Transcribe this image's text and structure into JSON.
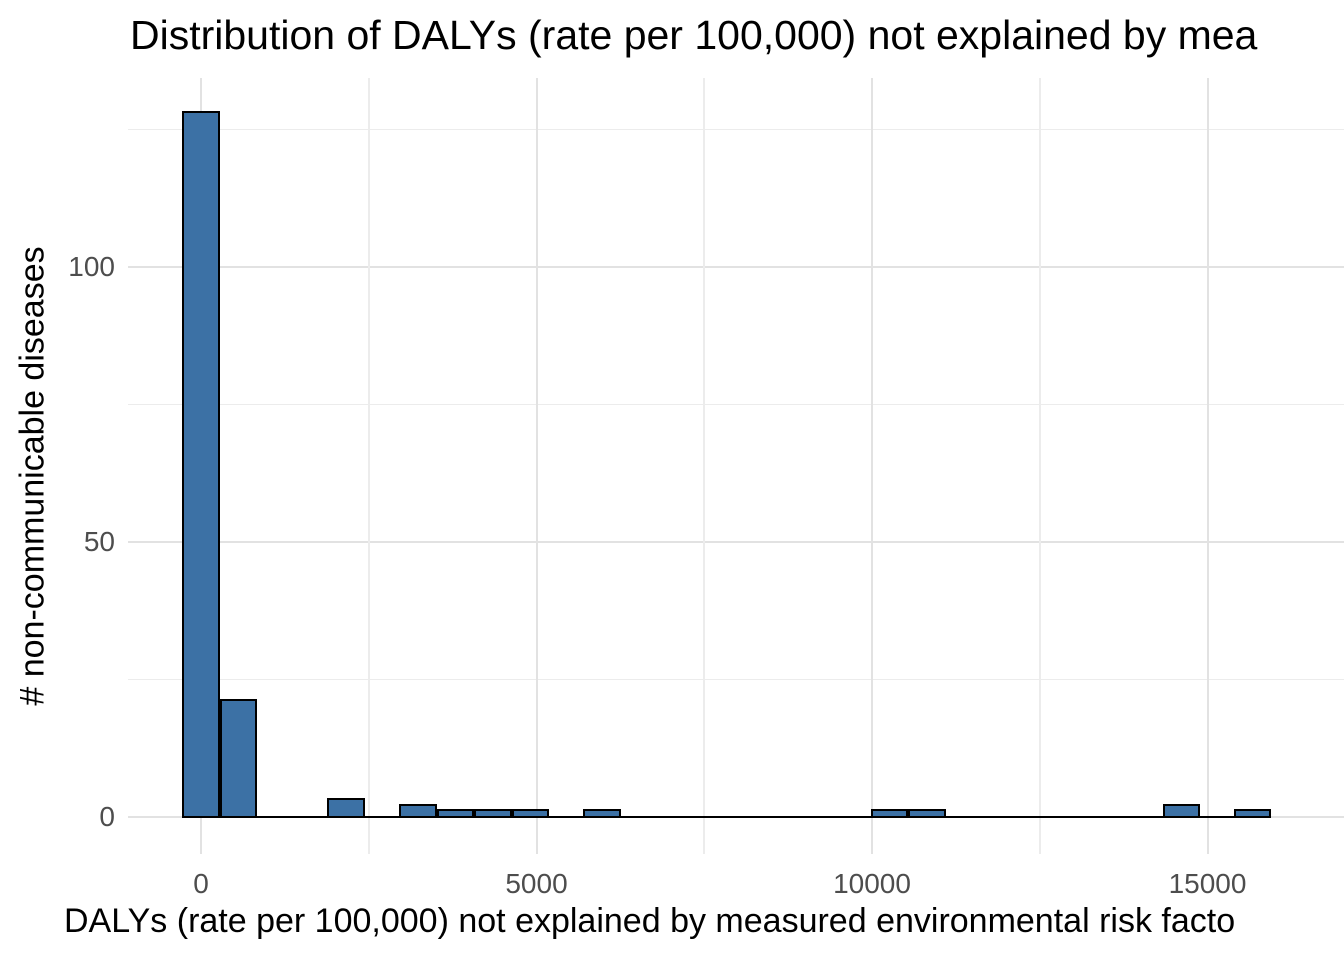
{
  "chart": {
    "title": "Distribution of DALYs (rate per 100,000) not explained by mea",
    "x_axis_title": "DALYs (rate per 100,000) not explained by measured environmental risk facto",
    "y_axis_title": "# non-communicable diseases",
    "colors": {
      "bar_fill": "#3C71A5",
      "bar_outline": "#000000",
      "baseline": "#000000",
      "grid_major": "#E2E2E2",
      "grid_minor": "#ECECEC",
      "tick_label": "#4D4D4D",
      "title_text": "#000000",
      "background": "#FFFFFF"
    }
  },
  "chart_data": {
    "type": "bar",
    "subtype": "histogram",
    "title": "Distribution of DALYs (rate per 100,000) not explained by mea",
    "xlabel": "DALYs (rate per 100,000) not explained by measured environmental risk facto",
    "ylabel": "# non-communicable diseases",
    "grid": true,
    "legend": false,
    "xlim": [
      -1090,
      17050
    ],
    "ylim": [
      -7,
      134
    ],
    "x_ticks": [
      0,
      5000,
      10000,
      15000
    ],
    "x_tick_labels": [
      "0",
      "5000",
      "10000",
      "15000"
    ],
    "x_minor_ticks": [
      2500,
      7500,
      12500
    ],
    "y_ticks": [
      0,
      50,
      100
    ],
    "y_tick_labels": [
      "0",
      "50",
      "100"
    ],
    "y_minor_ticks": [
      25,
      75,
      125
    ],
    "bins": [
      {
        "x0": -290,
        "x1": 290,
        "count": 128
      },
      {
        "x0": 290,
        "x1": 840,
        "count": 21
      },
      {
        "x0": 1880,
        "x1": 2440,
        "count": 3
      },
      {
        "x0": 2950,
        "x1": 3510,
        "count": 2
      },
      {
        "x0": 3510,
        "x1": 4070,
        "count": 1
      },
      {
        "x0": 4070,
        "x1": 4630,
        "count": 1
      },
      {
        "x0": 4630,
        "x1": 5190,
        "count": 1
      },
      {
        "x0": 5700,
        "x1": 6260,
        "count": 1
      },
      {
        "x0": 9980,
        "x1": 10540,
        "count": 1
      },
      {
        "x0": 10540,
        "x1": 11100,
        "count": 1
      },
      {
        "x0": 14330,
        "x1": 14890,
        "count": 2
      },
      {
        "x0": 15390,
        "x1": 15950,
        "count": 1
      }
    ]
  }
}
